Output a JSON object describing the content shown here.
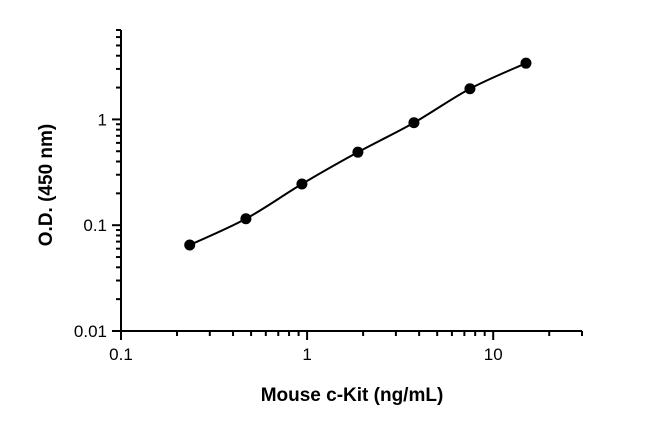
{
  "chart_data": {
    "type": "scatter",
    "xlabel": "Mouse c-Kit (ng/mL)",
    "ylabel": "O.D. (450 nm)",
    "x_scale": "log",
    "y_scale": "log",
    "xlim": [
      0.1,
      30
    ],
    "ylim": [
      0.01,
      7
    ],
    "x_ticks": [
      {
        "value": 0.1,
        "label": "0.1"
      },
      {
        "value": 1,
        "label": "1"
      },
      {
        "value": 10,
        "label": "10"
      }
    ],
    "y_ticks": [
      {
        "value": 0.01,
        "label": "0.01"
      },
      {
        "value": 0.1,
        "label": "0.1"
      },
      {
        "value": 1,
        "label": "1"
      }
    ],
    "grid": false,
    "series": [
      {
        "x": [
          0.234,
          0.469,
          0.938,
          1.875,
          3.75,
          7.5,
          15
        ],
        "y": [
          0.065,
          0.115,
          0.245,
          0.49,
          0.93,
          1.95,
          3.4
        ],
        "style": "markers-with-fitted-curve"
      }
    ]
  },
  "colors": {
    "series": "#000000",
    "axis": "#000000",
    "background": "#ffffff"
  }
}
